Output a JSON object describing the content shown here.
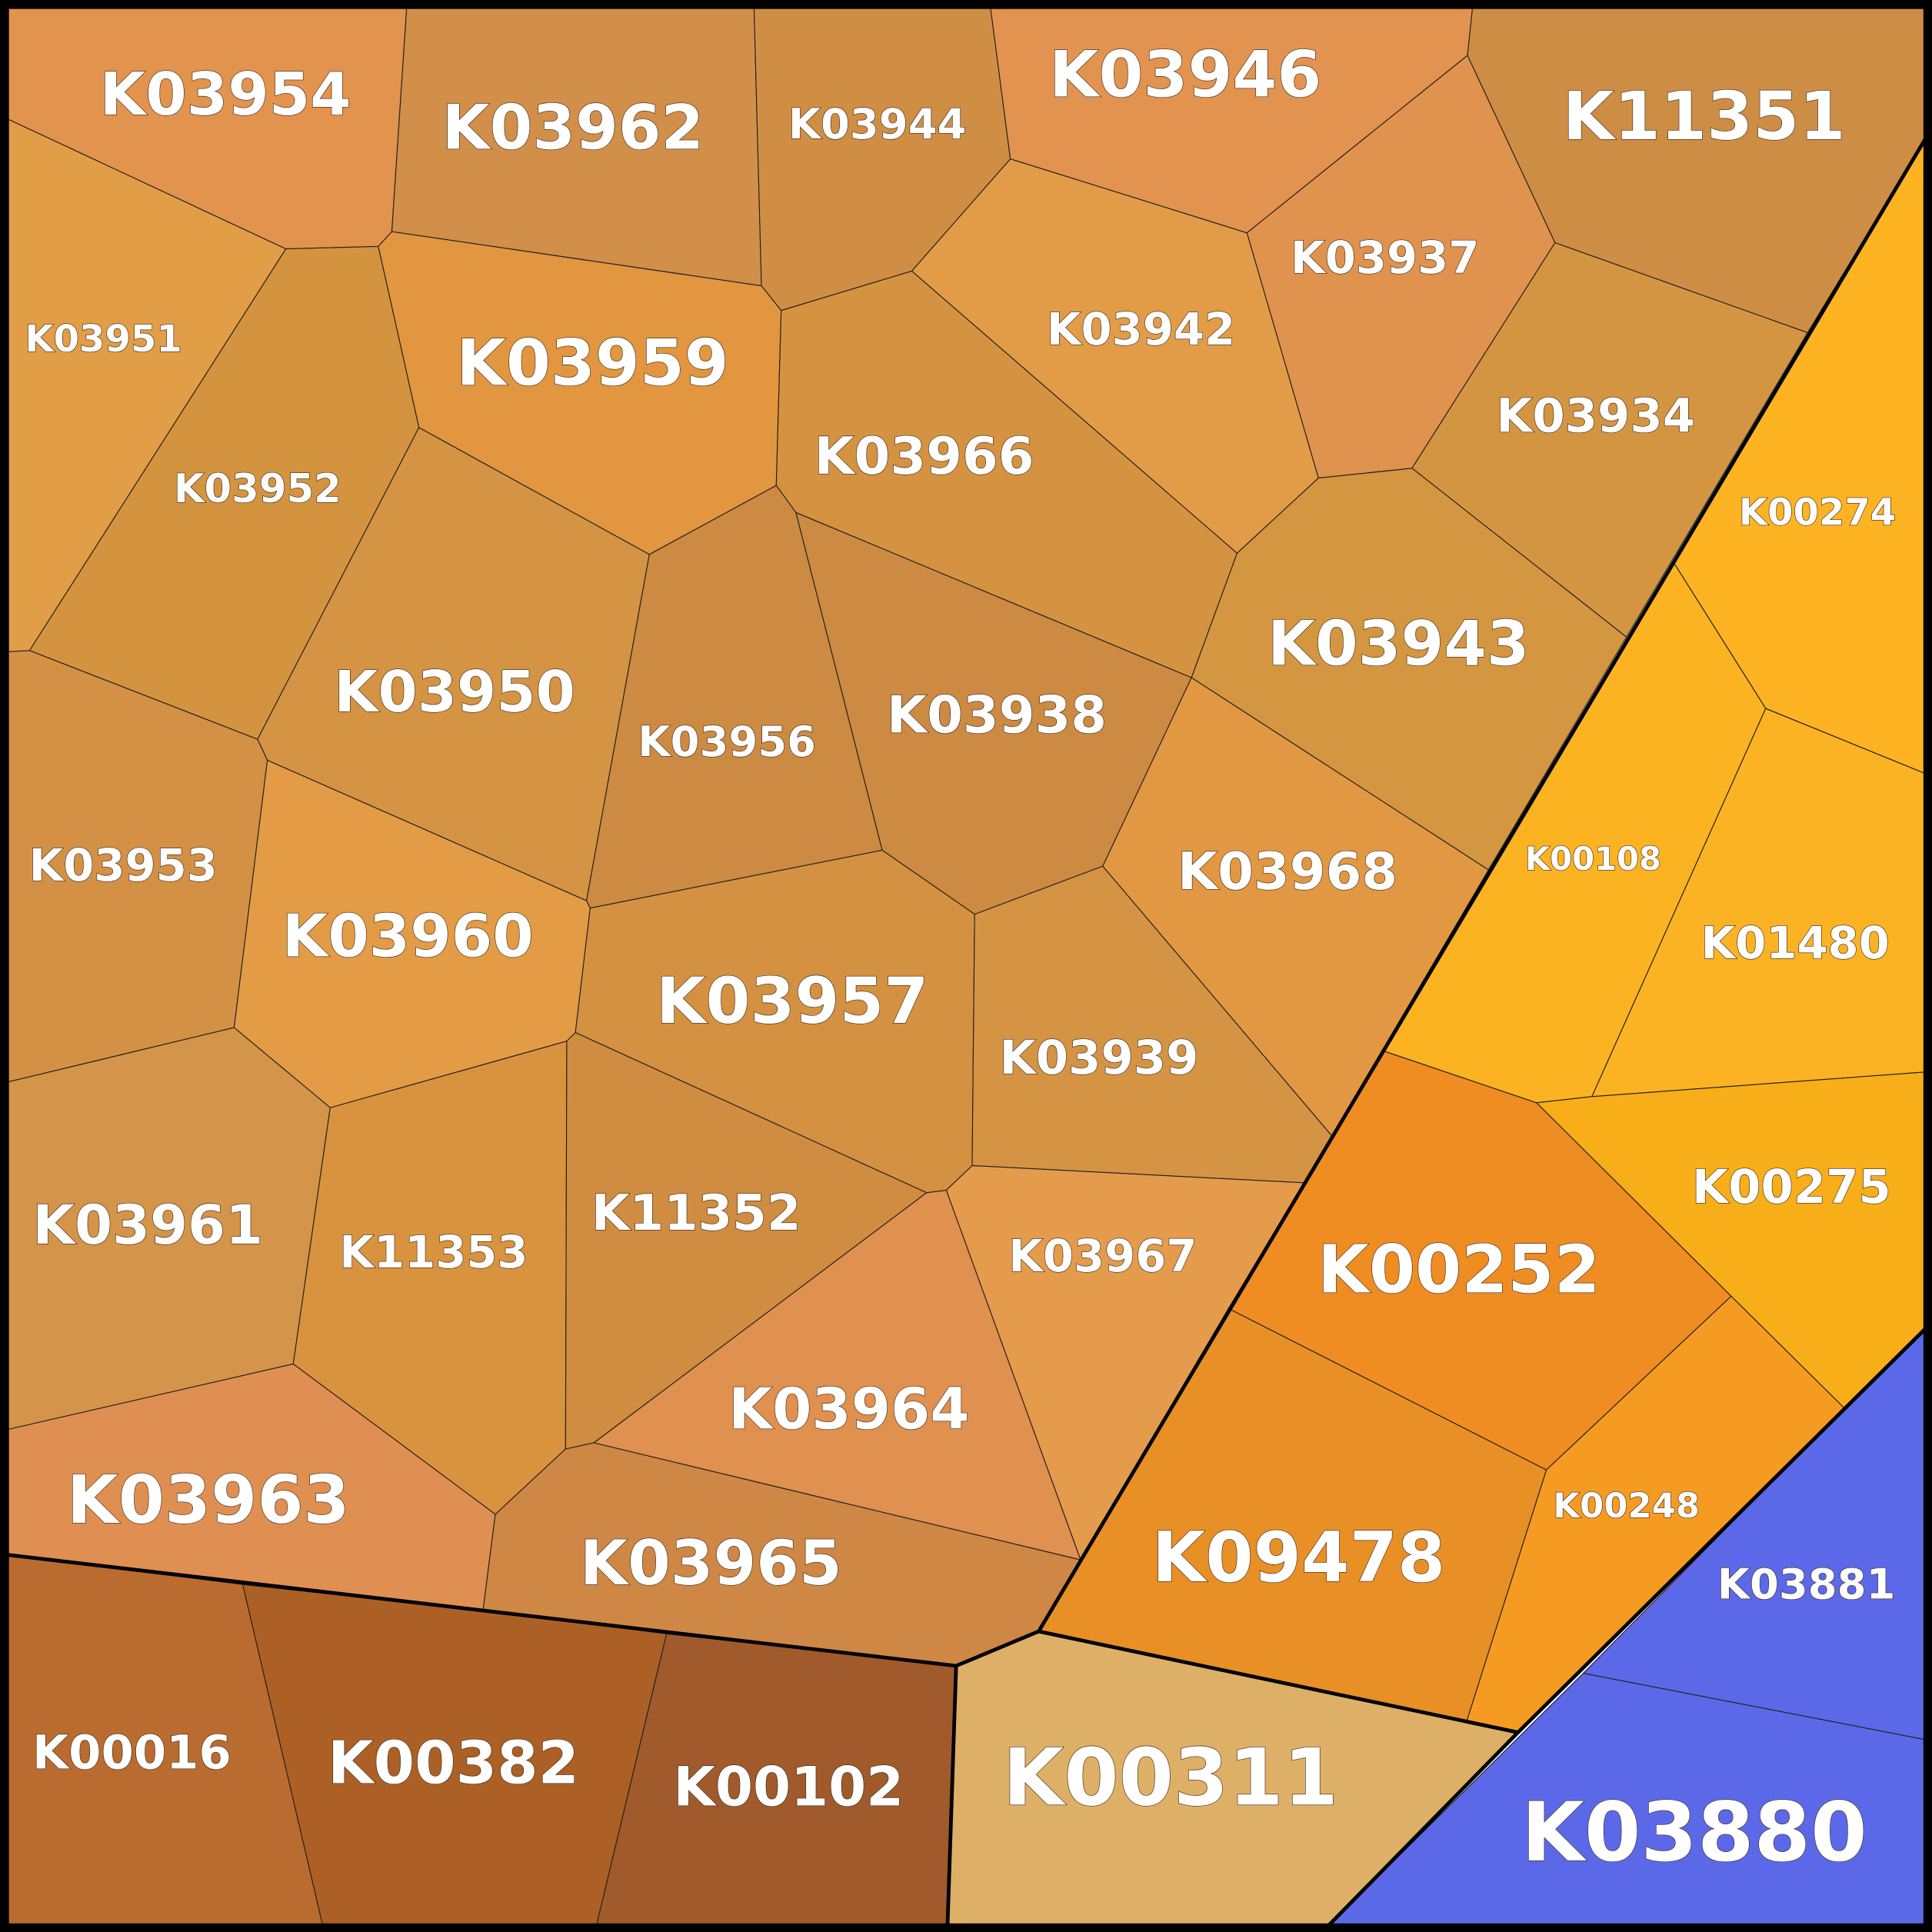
{
  "cells": [
    {
      "label": "K03954"
    },
    {
      "label": "K03962"
    },
    {
      "label": "K03944"
    },
    {
      "label": "K03946"
    },
    {
      "label": "K11351"
    },
    {
      "label": "K03937"
    },
    {
      "label": "K03942"
    },
    {
      "label": "K03934"
    },
    {
      "label": "K03951"
    },
    {
      "label": "K03959"
    },
    {
      "label": "K03952"
    },
    {
      "label": "K03966"
    },
    {
      "label": "K03943"
    },
    {
      "label": "K03950"
    },
    {
      "label": "K03956"
    },
    {
      "label": "K03938"
    },
    {
      "label": "K03968"
    },
    {
      "label": "K03953"
    },
    {
      "label": "K03960"
    },
    {
      "label": "K03957"
    },
    {
      "label": "K03939"
    },
    {
      "label": "K03961"
    },
    {
      "label": "K11353"
    },
    {
      "label": "K11352"
    },
    {
      "label": "K03967"
    },
    {
      "label": "K03964"
    },
    {
      "label": "K03963"
    },
    {
      "label": "K03965"
    },
    {
      "label": "K00016"
    },
    {
      "label": "K00382"
    },
    {
      "label": "K00102"
    },
    {
      "label": "K00311"
    },
    {
      "label": "K00274"
    },
    {
      "label": "K00108"
    },
    {
      "label": "K01480"
    },
    {
      "label": "K00275"
    },
    {
      "label": "K00252"
    },
    {
      "label": "K00248"
    },
    {
      "label": "K09478"
    },
    {
      "label": "K03881"
    },
    {
      "label": "K03880"
    }
  ]
}
